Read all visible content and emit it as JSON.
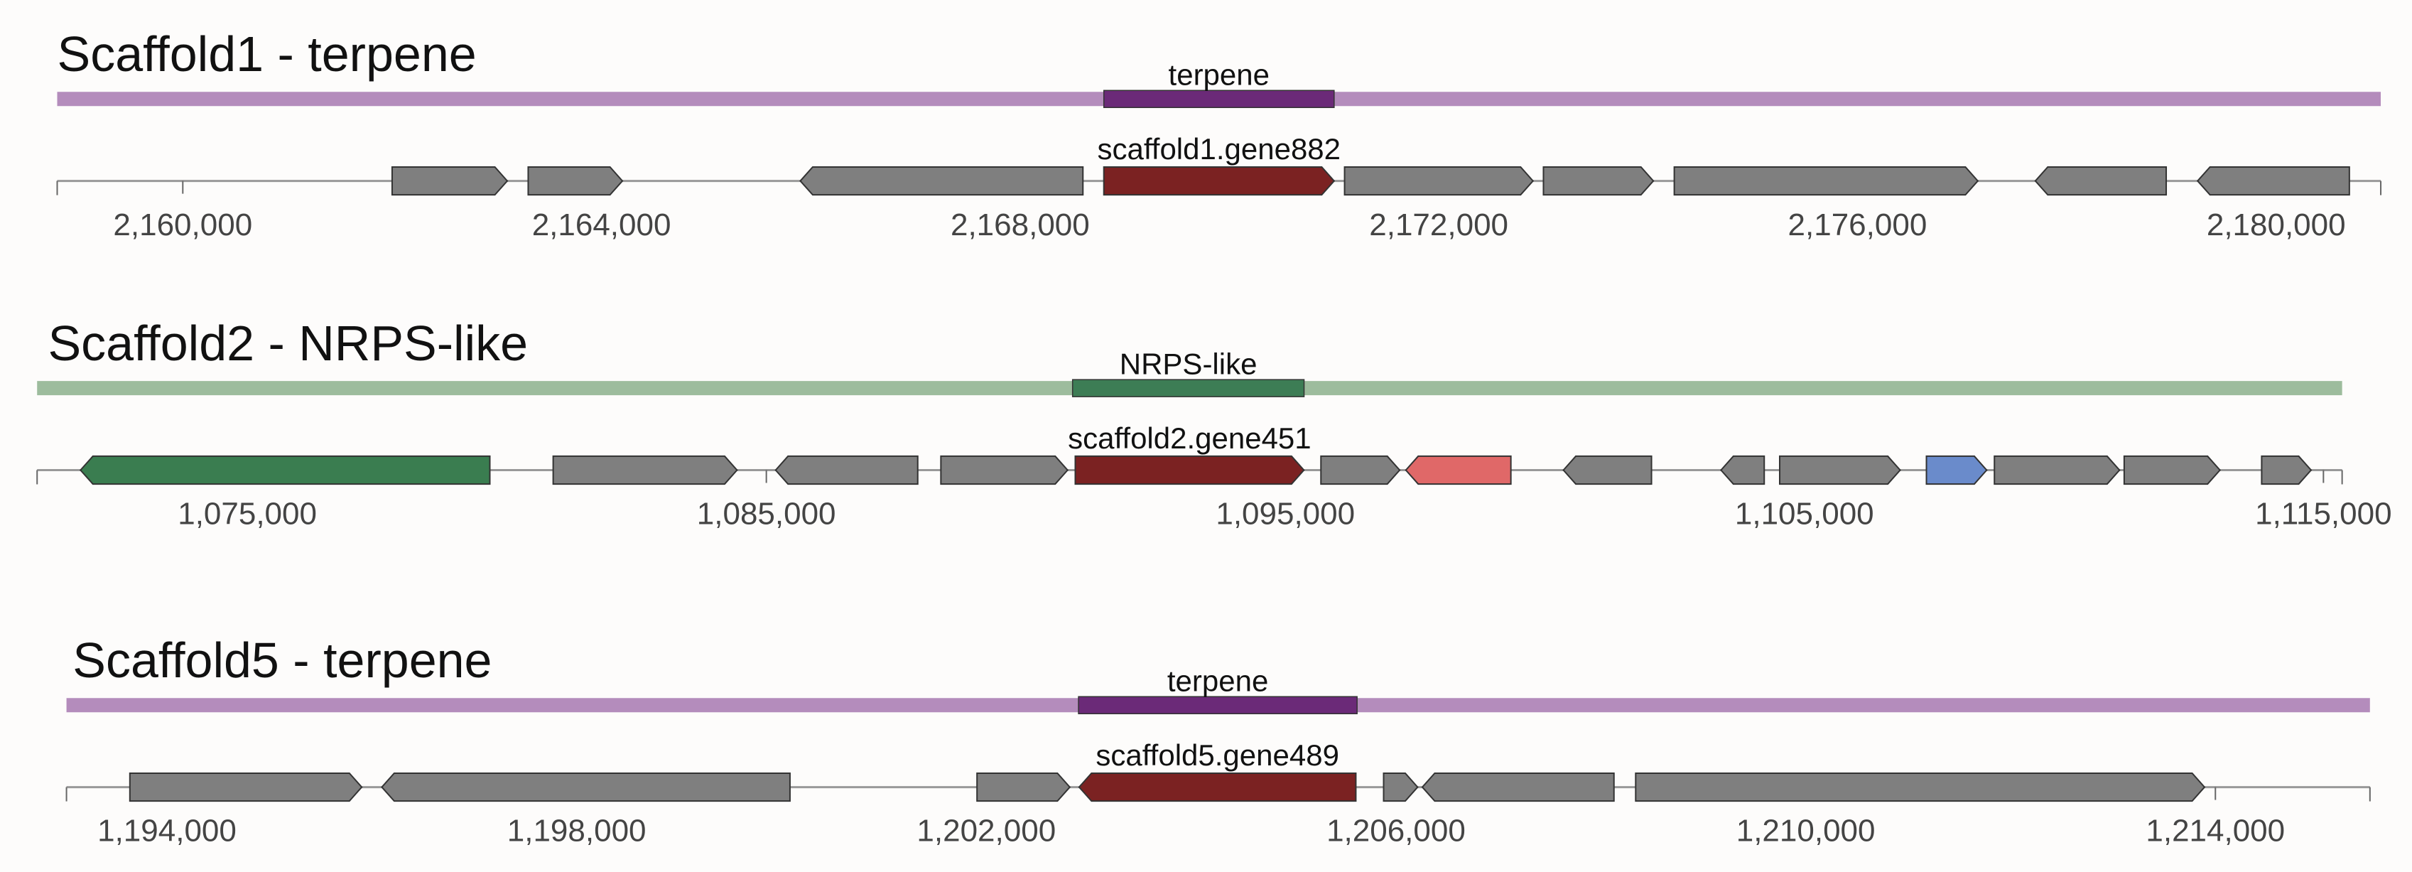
{
  "chart_data": [
    {
      "type": "gene-map",
      "title": "Scaffold1 - terpene",
      "xlim": [
        2158800,
        2181000
      ],
      "xticks": [
        {
          "value": 2160000,
          "label": "2,160,000"
        },
        {
          "value": 2164000,
          "label": "2,164,000"
        },
        {
          "value": 2168000,
          "label": "2,168,000"
        },
        {
          "value": 2172000,
          "label": "2,172,000"
        },
        {
          "value": 2176000,
          "label": "2,176,000"
        },
        {
          "value": 2180000,
          "label": "2,180,000"
        }
      ],
      "band_color": "#b48cbc",
      "region": {
        "label": "terpene",
        "start": 2168800,
        "end": 2171000,
        "color": "#6b2a78"
      },
      "genes": [
        {
          "start": 2162000,
          "end": 2163100,
          "strand": "+",
          "color": "#7f7f7f"
        },
        {
          "start": 2163300,
          "end": 2164200,
          "strand": "+",
          "color": "#7f7f7f"
        },
        {
          "start": 2165900,
          "end": 2168600,
          "strand": "-",
          "color": "#7f7f7f"
        },
        {
          "start": 2168800,
          "end": 2171000,
          "strand": "+",
          "color": "#7b2222",
          "label": "scaffold1.gene882"
        },
        {
          "start": 2171100,
          "end": 2172900,
          "strand": "+",
          "color": "#7f7f7f"
        },
        {
          "start": 2173000,
          "end": 2174050,
          "strand": "+",
          "color": "#7f7f7f"
        },
        {
          "start": 2174250,
          "end": 2177150,
          "strand": "+",
          "color": "#7f7f7f"
        },
        {
          "start": 2177700,
          "end": 2178950,
          "strand": "-",
          "color": "#7f7f7f"
        },
        {
          "start": 2179250,
          "end": 2180700,
          "strand": "-",
          "color": "#7f7f7f"
        }
      ]
    },
    {
      "type": "gene-map",
      "title": "Scaffold2 - NRPS-like",
      "xlim": [
        1070950,
        1115360
      ],
      "xticks": [
        {
          "value": 1075000,
          "label": "1,075,000"
        },
        {
          "value": 1085000,
          "label": "1,085,000"
        },
        {
          "value": 1095000,
          "label": "1,095,000"
        },
        {
          "value": 1105000,
          "label": "1,105,000"
        },
        {
          "value": 1115000,
          "label": "1,115,000"
        }
      ],
      "band_color": "#9dbc9d",
      "region": {
        "label": "NRPS-like",
        "start": 1090900,
        "end": 1095360,
        "color": "#3d7d55"
      },
      "genes": [
        {
          "start": 1071786,
          "end": 1079673,
          "strand": "-",
          "color": "#3a7d50"
        },
        {
          "start": 1080893,
          "end": 1084435,
          "strand": "+",
          "color": "#7f7f7f"
        },
        {
          "start": 1085179,
          "end": 1087917,
          "strand": "-",
          "color": "#7f7f7f"
        },
        {
          "start": 1088363,
          "end": 1090804,
          "strand": "+",
          "color": "#7f7f7f"
        },
        {
          "start": 1090952,
          "end": 1095357,
          "strand": "+",
          "color": "#7b2222",
          "label": "scaffold2.gene451"
        },
        {
          "start": 1095685,
          "end": 1097202,
          "strand": "+",
          "color": "#7f7f7f"
        },
        {
          "start": 1097321,
          "end": 1099345,
          "strand": "-",
          "color": "#e06868"
        },
        {
          "start": 1100357,
          "end": 1102054,
          "strand": "-",
          "color": "#7f7f7f"
        },
        {
          "start": 1103393,
          "end": 1104226,
          "strand": "-",
          "color": "#7f7f7f"
        },
        {
          "start": 1104524,
          "end": 1106845,
          "strand": "+",
          "color": "#7f7f7f"
        },
        {
          "start": 1107351,
          "end": 1108512,
          "strand": "+",
          "color": "#6a8bcb"
        },
        {
          "start": 1108661,
          "end": 1111071,
          "strand": "+",
          "color": "#7f7f7f"
        },
        {
          "start": 1111161,
          "end": 1113006,
          "strand": "+",
          "color": "#7f7f7f"
        },
        {
          "start": 1113810,
          "end": 1114762,
          "strand": "+",
          "color": "#7f7f7f"
        }
      ]
    },
    {
      "type": "gene-map",
      "title": "Scaffold5 - terpene",
      "xlim": [
        1193019,
        1215509
      ],
      "xticks": [
        {
          "value": 1194000,
          "label": "1,194,000"
        },
        {
          "value": 1198000,
          "label": "1,198,000"
        },
        {
          "value": 1202000,
          "label": "1,202,000"
        },
        {
          "value": 1206000,
          "label": "1,206,000"
        },
        {
          "value": 1210000,
          "label": "1,210,000"
        },
        {
          "value": 1214000,
          "label": "1,214,000"
        }
      ],
      "band_color": "#b48cbc",
      "region": {
        "label": "terpene",
        "start": 1202900,
        "end": 1205620,
        "color": "#6b2a78"
      },
      "genes": [
        {
          "start": 1193638,
          "end": 1195902,
          "strand": "+",
          "color": "#7f7f7f"
        },
        {
          "start": 1196098,
          "end": 1200083,
          "strand": "-",
          "color": "#7f7f7f"
        },
        {
          "start": 1201909,
          "end": 1202815,
          "strand": "+",
          "color": "#7f7f7f"
        },
        {
          "start": 1202906,
          "end": 1205608,
          "strand": "-",
          "color": "#7b2222",
          "label": "scaffold5.gene489"
        },
        {
          "start": 1205879,
          "end": 1206211,
          "strand": "+",
          "color": "#7f7f7f"
        },
        {
          "start": 1206257,
          "end": 1208128,
          "strand": "-",
          "color": "#7f7f7f"
        },
        {
          "start": 1208340,
          "end": 1213894,
          "strand": "+",
          "color": "#7f7f7f"
        }
      ]
    }
  ]
}
